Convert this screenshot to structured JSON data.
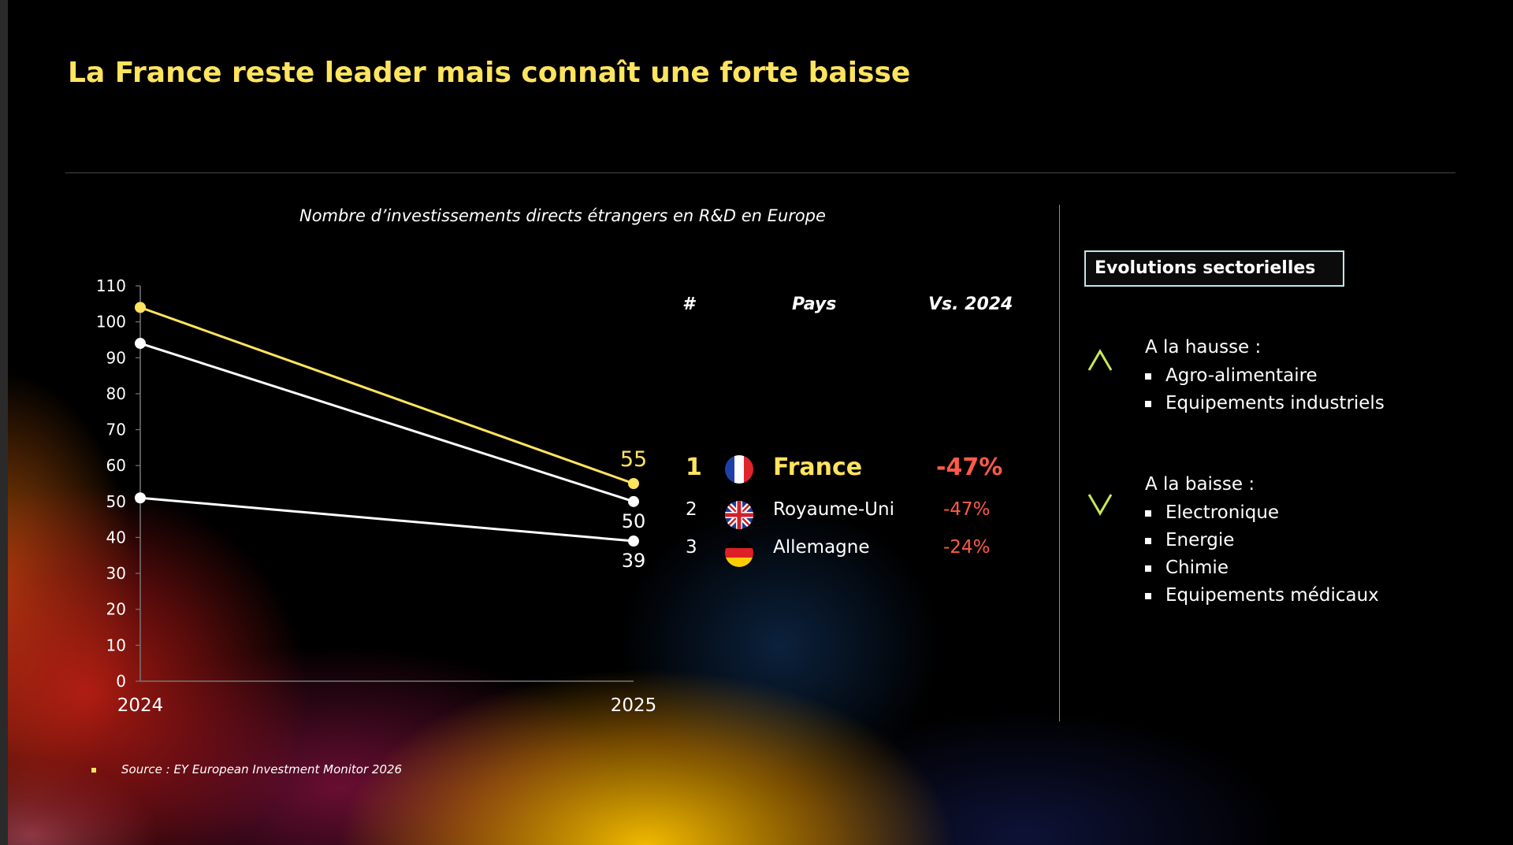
{
  "title": "La France reste leader mais connaît une forte baisse",
  "chart_data": {
    "type": "line",
    "title": "Nombre d’investissements directs étrangers en R&D en Europe",
    "x": [
      "2024",
      "2025"
    ],
    "ylim": [
      0,
      110
    ],
    "yticks": [
      "0",
      "10",
      "20",
      "30",
      "40",
      "50",
      "60",
      "70",
      "80",
      "90",
      "100",
      "110"
    ],
    "series": [
      {
        "values": [
          104,
          55
        ],
        "color": "#ffe45e",
        "end_label": "55"
      },
      {
        "values": [
          94,
          50
        ],
        "color": "#ffffff",
        "end_label": "50"
      },
      {
        "values": [
          51,
          39
        ],
        "color": "#ffffff",
        "end_label": "39"
      }
    ],
    "grid": false
  },
  "ranking": {
    "headers": {
      "rank": "#",
      "country": "Pays",
      "change": "Vs. 2024"
    },
    "rows": [
      {
        "rank": "1",
        "country": "France",
        "change": "-47%",
        "flag": "france-flag"
      },
      {
        "rank": "2",
        "country": "Royaume-Uni",
        "change": "-47%",
        "flag": "uk-flag"
      },
      {
        "rank": "3",
        "country": "Allemagne",
        "change": "-24%",
        "flag": "germany-flag"
      }
    ]
  },
  "sectors": {
    "title": "Evolutions sectorielles",
    "up": {
      "heading": "A la hausse :",
      "icon": "chevron-up-icon",
      "items": [
        "Agro-alimentaire",
        "Equipements industriels"
      ]
    },
    "down": {
      "heading": "A la baisse :",
      "icon": "chevron-down-icon",
      "items": [
        "Electronique",
        "Energie",
        "Chimie",
        "Equipements médicaux"
      ]
    }
  },
  "source": "Source : EY European Investment Monitor 2026",
  "colors": {
    "accent": "#ffe45e",
    "negative": "#ff5a4a",
    "box_border": "#bfe6ea"
  }
}
